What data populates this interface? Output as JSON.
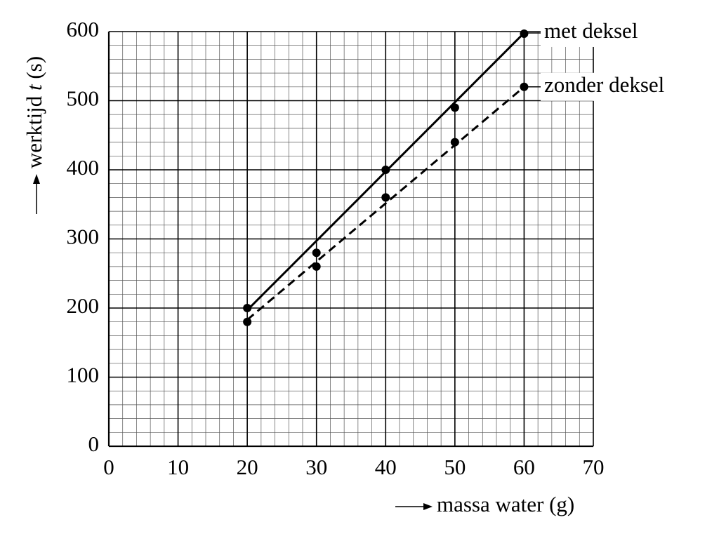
{
  "chart_data": {
    "type": "scatter",
    "xlabel": "massa water (g)",
    "ylabel": [
      "werktijd ",
      "t",
      " (s)"
    ],
    "x": [
      20,
      30,
      40,
      50,
      60
    ],
    "series": [
      {
        "name": "met deksel",
        "color": "#000000",
        "style": "solid",
        "values": [
          200,
          280,
          400,
          490,
          597
        ],
        "fit_x": [
          20,
          60
        ],
        "fit_y": [
          197,
          598
        ]
      },
      {
        "name": "zonder deksel",
        "color": "#000000",
        "style": "dashed",
        "values": [
          180,
          260,
          360,
          440,
          520
        ],
        "fit_x": [
          20,
          60
        ],
        "fit_y": [
          183,
          520
        ]
      }
    ],
    "xlim": [
      0,
      70
    ],
    "xticks": [
      0,
      10,
      20,
      30,
      40,
      50,
      60,
      70
    ],
    "ylim": [
      0,
      600
    ],
    "yticks": [
      0,
      100,
      200,
      300,
      400,
      500,
      600
    ],
    "minor_x": 2,
    "minor_y": 20,
    "grid": true
  }
}
